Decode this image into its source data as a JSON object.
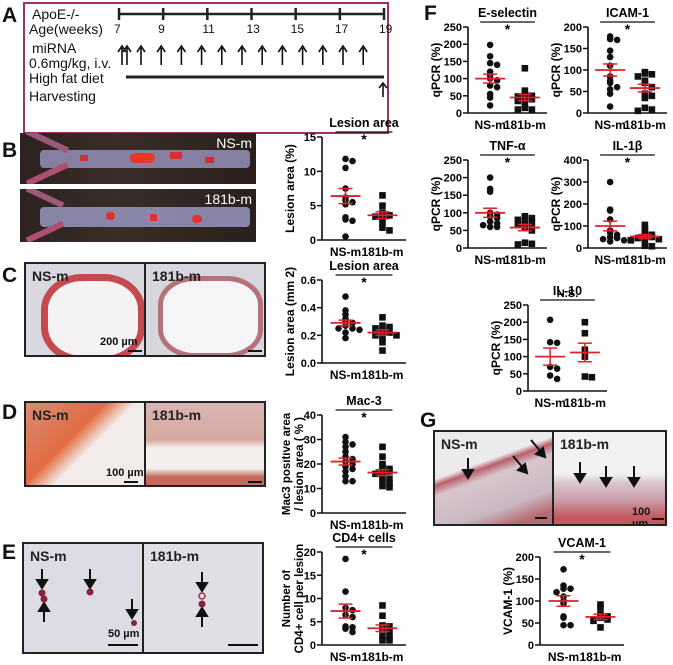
{
  "panels": {
    "A": {
      "label": "A",
      "rows": {
        "mouse": "ApoE-/-",
        "age": "Age(weeks)",
        "mirna_line1": "miRNA",
        "mirna_line2": "0.6mg/kg, i.v.",
        "diet": "High fat diet",
        "harvest": "Harvesting"
      },
      "weeks": [
        "7",
        "9",
        "11",
        "13",
        "15",
        "17",
        "19"
      ],
      "injection_count": 14,
      "border_color": "#a0306a"
    },
    "B": {
      "label": "B",
      "image_labels": [
        "NS-m",
        "181b-m"
      ]
    },
    "C": {
      "label": "C",
      "image_labels": [
        "NS-m",
        "181b-m"
      ],
      "scale": "200 µm"
    },
    "D": {
      "label": "D",
      "image_labels": [
        "NS-m",
        "181b-m"
      ],
      "scale": "100 µm"
    },
    "E": {
      "label": "E",
      "image_labels": [
        "NS-m",
        "181b-m"
      ],
      "scale": "50 µm"
    },
    "F": {
      "label": "F"
    },
    "G": {
      "label": "G",
      "image_labels": [
        "NS-m",
        "181b-m"
      ],
      "scale": "100 µm"
    }
  },
  "chart_data": [
    {
      "id": "B_lesion_area_pct",
      "type": "scatter",
      "title": "Lesion area",
      "ylabel": "Lesion area (%)",
      "categories": [
        "NS-m",
        "181b-m"
      ],
      "ylim": [
        0,
        15
      ],
      "yticks": [
        0,
        5,
        10,
        15
      ],
      "significance": "*",
      "series": [
        {
          "name": "NS-m",
          "marker": "circle",
          "values": [
            11.8,
            11.5,
            10.5,
            7.5,
            6.2,
            5.8,
            5.5,
            5.2,
            3.3,
            3.0,
            2.8,
            0.5
          ],
          "mean": 6.4,
          "sem": 1.1
        },
        {
          "name": "181b-m",
          "marker": "square",
          "values": [
            6.5,
            5.0,
            4.0,
            3.6,
            3.4,
            3.2,
            2.5,
            1.8,
            1.4
          ],
          "mean": 3.6,
          "sem": 0.5
        }
      ]
    },
    {
      "id": "C_lesion_area_mm2",
      "type": "scatter",
      "title": "Lesion area",
      "ylabel": "Lesion area (mm 2)",
      "categories": [
        "NS-m",
        "181b-m"
      ],
      "ylim": [
        0,
        0.6
      ],
      "yticks": [
        "0.0",
        "0.2",
        "0.4",
        "0.6"
      ],
      "significance": "*",
      "series": [
        {
          "name": "NS-m",
          "marker": "circle",
          "values": [
            0.48,
            0.38,
            0.35,
            0.32,
            0.3,
            0.29,
            0.27,
            0.25,
            0.25,
            0.24,
            0.22,
            0.18
          ],
          "mean": 0.29,
          "sem": 0.02
        },
        {
          "name": "181b-m",
          "marker": "square",
          "values": [
            0.33,
            0.27,
            0.26,
            0.25,
            0.23,
            0.22,
            0.2,
            0.2,
            0.18,
            0.15,
            0.09
          ],
          "mean": 0.22,
          "sem": 0.02
        }
      ]
    },
    {
      "id": "D_mac3",
      "type": "scatter",
      "title": "Mac-3",
      "ylabel_line1": "Mac3 positive area",
      "ylabel_line2": "/ lesion area ( % )",
      "categories": [
        "NS-m",
        "181b-m"
      ],
      "ylim": [
        0,
        40
      ],
      "yticks": [
        0,
        10,
        20,
        30,
        40
      ],
      "significance": "*",
      "series": [
        {
          "name": "NS-m",
          "marker": "circle",
          "values": [
            31,
            29,
            28,
            27,
            25,
            23,
            22,
            21,
            20,
            19,
            18,
            17,
            15,
            13,
            13
          ],
          "mean": 21,
          "sem": 1.4
        },
        {
          "name": "181b-m",
          "marker": "square",
          "values": [
            27,
            23,
            20,
            19,
            18,
            17,
            17,
            16,
            15,
            14,
            13,
            12,
            11,
            10.5
          ],
          "mean": 16.5,
          "sem": 1.2
        }
      ]
    },
    {
      "id": "E_cd4",
      "type": "scatter",
      "title": "CD4+ cells",
      "ylabel_line1": "Number of",
      "ylabel_line2": "CD4+ cell per lesion",
      "categories": [
        "NS-m",
        "181b-m"
      ],
      "ylim": [
        0,
        20
      ],
      "yticks": [
        0,
        5,
        10,
        15,
        20
      ],
      "significance": "*",
      "series": [
        {
          "name": "NS-m",
          "marker": "circle",
          "values": [
            18.5,
            11.5,
            8.0,
            7.5,
            6.5,
            6.0,
            4.0,
            3.8,
            3.5,
            2.8
          ],
          "mean": 7.3,
          "sem": 1.5
        },
        {
          "name": "181b-m",
          "marker": "square",
          "values": [
            8.5,
            6.3,
            4.2,
            4.0,
            3.5,
            3.0,
            2.0,
            1.8,
            1.0,
            1.0
          ],
          "mean": 3.6,
          "sem": 0.7
        }
      ]
    },
    {
      "id": "F_e_selectin",
      "type": "scatter",
      "title": "E-selectin",
      "ylabel": "qPCR (%)",
      "categories": [
        "NS-m",
        "181b-m"
      ],
      "ylim": [
        0,
        250
      ],
      "yticks": [
        0,
        50,
        100,
        150,
        200,
        250
      ],
      "significance": "*",
      "series": [
        {
          "name": "NS-m",
          "marker": "circle",
          "values": [
            198,
            165,
            145,
            140,
            120,
            110,
            100,
            95,
            80,
            75,
            55,
            45,
            22
          ],
          "mean": 100,
          "sem": 13
        },
        {
          "name": "181b-m",
          "marker": "square",
          "values": [
            130,
            65,
            55,
            50,
            48,
            45,
            40,
            35,
            25,
            15,
            10,
            10
          ],
          "mean": 45,
          "sem": 9
        }
      ]
    },
    {
      "id": "F_icam1",
      "type": "scatter",
      "title": "ICAM-1",
      "ylabel": "qPCR (%)",
      "categories": [
        "NS-m",
        "181b-m"
      ],
      "ylim": [
        0,
        200
      ],
      "yticks": [
        0,
        50,
        100,
        150,
        200
      ],
      "significance": "*",
      "series": [
        {
          "name": "NS-m",
          "marker": "circle",
          "values": [
            178,
            172,
            170,
            145,
            130,
            110,
            85,
            75,
            70,
            60,
            55,
            45,
            15
          ],
          "mean": 100,
          "sem": 14
        },
        {
          "name": "181b-m",
          "marker": "square",
          "values": [
            95,
            92,
            90,
            85,
            75,
            70,
            60,
            45,
            40,
            35,
            12,
            8,
            5
          ],
          "mean": 58,
          "sem": 9
        }
      ]
    },
    {
      "id": "F_tnfa",
      "type": "scatter",
      "title": "TNF-α",
      "ylabel": "qPCR (%)",
      "categories": [
        "NS-m",
        "181b-m"
      ],
      "ylim": [
        0,
        250
      ],
      "yticks": [
        0,
        50,
        100,
        150,
        200,
        250
      ],
      "significance": "*",
      "series": [
        {
          "name": "NS-m",
          "marker": "circle",
          "values": [
            200,
            168,
            160,
            100,
            95,
            90,
            85,
            75,
            70,
            65,
            60,
            60
          ],
          "mean": 100,
          "sem": 13
        },
        {
          "name": "181b-m",
          "marker": "square",
          "values": [
            90,
            85,
            80,
            75,
            70,
            65,
            60,
            50,
            15,
            12,
            10
          ],
          "mean": 58,
          "sem": 9
        }
      ]
    },
    {
      "id": "F_il1b",
      "type": "scatter",
      "title": "IL-1β",
      "ylabel": "qPCR (%)",
      "categories": [
        "NS-m",
        "181b-m"
      ],
      "ylim": [
        0,
        400
      ],
      "yticks": [
        0,
        100,
        200,
        300,
        400
      ],
      "significance": "*",
      "series": [
        {
          "name": "NS-m",
          "marker": "circle",
          "values": [
            300,
            175,
            170,
            130,
            80,
            70,
            60,
            50,
            45,
            40,
            35,
            30
          ],
          "mean": 100,
          "sem": 22
        },
        {
          "name": "181b-m",
          "marker": "square",
          "values": [
            105,
            85,
            75,
            60,
            55,
            50,
            45,
            40,
            35,
            30,
            10,
            8
          ],
          "mean": 52,
          "sem": 9
        }
      ]
    },
    {
      "id": "F_il10",
      "type": "scatter",
      "title": "IL-10",
      "ylabel": "qPCR (%)",
      "categories": [
        "NS-m",
        "181b-m"
      ],
      "ylim": [
        0,
        250
      ],
      "yticks": [
        0,
        50,
        100,
        150,
        200,
        250
      ],
      "significance": "N.S.",
      "series": [
        {
          "name": "NS-m",
          "marker": "circle",
          "values": [
            207,
            142,
            140,
            70,
            65,
            45,
            35
          ],
          "mean": 100,
          "sem": 25
        },
        {
          "name": "181b-m",
          "marker": "square",
          "values": [
            200,
            168,
            120,
            100,
            42,
            40
          ],
          "mean": 112,
          "sem": 27
        }
      ]
    },
    {
      "id": "G_vcam1",
      "type": "scatter",
      "title": "VCAM-1",
      "ylabel": "VCAM-1 (%)",
      "categories": [
        "NS-m",
        "181b-m"
      ],
      "ylim": [
        0,
        200
      ],
      "yticks": [
        0,
        50,
        100,
        150,
        200
      ],
      "significance": "*",
      "series": [
        {
          "name": "NS-m",
          "marker": "circle",
          "values": [
            172,
            135,
            128,
            128,
            120,
            110,
            100,
            95,
            65,
            62,
            45,
            45
          ],
          "mean": 100,
          "sem": 12
        },
        {
          "name": "181b-m",
          "marker": "square",
          "values": [
            92,
            85,
            70,
            65,
            62,
            58,
            55,
            40
          ],
          "mean": 64,
          "sem": 6
        }
      ]
    }
  ],
  "colors": {
    "mean_sem": "#e0202a",
    "points": "#111111",
    "axis": "#111111"
  }
}
